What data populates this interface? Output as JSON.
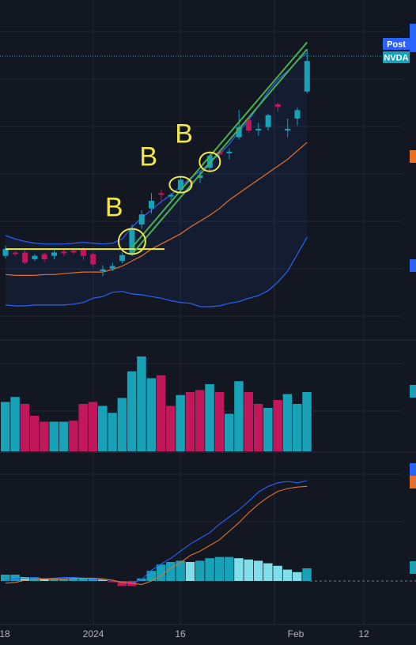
{
  "colors": {
    "background": "#131722",
    "grid": "#232733",
    "up": "#17a2b8",
    "down": "#c2185b",
    "band": "#2962ff",
    "ema": "#e8712a",
    "macd": "#2962ff",
    "signal": "#e8712a",
    "trendline": "#4caf50",
    "annotation": "#f2e64a",
    "hist_pos_strong": "#17a2b8",
    "hist_pos_weak": "#80deea",
    "hist_neg_strong": "#c2185b",
    "hist_neg_weak": "#f48fb1"
  },
  "price_badges": [
    {
      "text": "Post",
      "color": "#2962ff"
    },
    {
      "text": "NVDA",
      "color": "#17a2b8"
    }
  ],
  "annotations": [
    "B",
    "B",
    "B"
  ],
  "chart_data": {
    "type": "candlestick",
    "x_axis": {
      "tick_labels": [
        "18",
        "2024",
        "16",
        "Feb",
        "12"
      ]
    },
    "grid": true,
    "price": {
      "candles": [
        {
          "dir": "up",
          "open": 18,
          "close": 26,
          "high": 30,
          "low": 15
        },
        {
          "dir": "down",
          "open": 22,
          "close": 21,
          "high": 24,
          "low": 18
        },
        {
          "dir": "down",
          "open": 22,
          "close": 10,
          "high": 25,
          "low": 8
        },
        {
          "dir": "up",
          "open": 14,
          "close": 18,
          "high": 20,
          "low": 12
        },
        {
          "dir": "down",
          "open": 20,
          "close": 14,
          "high": 22,
          "low": 11
        },
        {
          "dir": "up",
          "open": 18,
          "close": 22,
          "high": 25,
          "low": 14
        },
        {
          "dir": "down",
          "open": 23,
          "close": 21,
          "high": 26,
          "low": 18
        },
        {
          "dir": "down",
          "open": 24,
          "close": 22,
          "high": 27,
          "low": 20
        },
        {
          "dir": "down",
          "open": 25,
          "close": 18,
          "high": 28,
          "low": 13
        },
        {
          "dir": "down",
          "open": 20,
          "close": 8,
          "high": 22,
          "low": 5
        },
        {
          "dir": "up",
          "open": 0,
          "close": 2,
          "high": 7,
          "low": -6
        },
        {
          "dir": "up",
          "open": 3,
          "close": 6,
          "high": 10,
          "low": 0
        },
        {
          "dir": "up",
          "open": 12,
          "close": 19,
          "high": 22,
          "low": 9
        },
        {
          "dir": "up",
          "open": 20,
          "close": 50,
          "high": 55,
          "low": 18
        },
        {
          "dir": "up",
          "open": 55,
          "close": 67,
          "high": 72,
          "low": 50
        },
        {
          "dir": "up",
          "open": 74,
          "close": 83,
          "high": 92,
          "low": 68
        },
        {
          "dir": "down",
          "open": 92,
          "close": 90,
          "high": 96,
          "low": 80
        },
        {
          "dir": "up",
          "open": 88,
          "close": 90,
          "high": 92,
          "low": 84
        },
        {
          "dir": "up",
          "open": 96,
          "close": 108,
          "high": 112,
          "low": 92
        },
        {
          "dir": "down",
          "open": 107,
          "close": 105,
          "high": 110,
          "low": 98
        },
        {
          "dir": "up",
          "open": 110,
          "close": 113,
          "high": 118,
          "low": 104
        },
        {
          "dir": "up",
          "open": 122,
          "close": 136,
          "high": 140,
          "low": 118
        },
        {
          "dir": "down",
          "open": 141,
          "close": 138,
          "high": 143,
          "low": 134
        },
        {
          "dir": "up",
          "open": 140,
          "close": 141,
          "high": 145,
          "low": 132
        },
        {
          "dir": "up",
          "open": 158,
          "close": 170,
          "high": 190,
          "low": 155
        },
        {
          "dir": "down",
          "open": 178,
          "close": 166,
          "high": 182,
          "low": 164
        },
        {
          "dir": "up",
          "open": 166,
          "close": 168,
          "high": 175,
          "low": 160
        },
        {
          "dir": "up",
          "open": 170,
          "close": 184,
          "high": 186,
          "low": 166
        },
        {
          "dir": "down",
          "open": 197,
          "close": 194,
          "high": 199,
          "low": 188
        },
        {
          "dir": "up",
          "open": 166,
          "close": 168,
          "high": 180,
          "low": 158
        },
        {
          "dir": "up",
          "open": 180,
          "close": 190,
          "high": 193,
          "low": 172
        },
        {
          "dir": "up",
          "open": 212,
          "close": 248,
          "high": 262,
          "low": 210
        }
      ],
      "upper_band": [
        42,
        38,
        35,
        33,
        32,
        32,
        32,
        33,
        34,
        33,
        32,
        33,
        38,
        52,
        63,
        72,
        82,
        90,
        100,
        110,
        118,
        128,
        138,
        150,
        165,
        178,
        195,
        212,
        226,
        236,
        248,
        258
      ],
      "lower_band": [
        -40,
        -41,
        -41,
        -40,
        -40,
        -40,
        -40,
        -39,
        -37,
        -32,
        -30,
        -25,
        -24,
        -27,
        -28,
        -30,
        -32,
        -35,
        -37,
        -38,
        -42,
        -42,
        -41,
        -38,
        -36,
        -32,
        -29,
        -23,
        -13,
        0,
        20,
        40
      ],
      "basis": [
        2,
        0,
        -1,
        -2,
        -2,
        -2,
        -1,
        0,
        1,
        1,
        0,
        1,
        5,
        12,
        22,
        31,
        40,
        48,
        58,
        70,
        80,
        92,
        104,
        118,
        132,
        145,
        162,
        178,
        195,
        207,
        220,
        235
      ],
      "ema": [
        -4,
        -5,
        -5,
        -5,
        -4,
        -4,
        -3,
        -2,
        -1,
        -1,
        -1,
        2,
        6,
        12,
        18,
        26,
        32,
        38,
        44,
        52,
        59,
        66,
        74,
        84,
        92,
        100,
        108,
        116,
        124,
        132,
        142,
        152
      ],
      "horizontal_level": 26,
      "trendlines": [
        {
          "from": [
            13,
            20
          ],
          "to": [
            31,
            262
          ]
        },
        {
          "from": [
            13,
            28
          ],
          "to": [
            31,
            270
          ]
        }
      ],
      "circled": [
        13,
        18,
        21
      ]
    },
    "volume": {
      "values": [
        50,
        55,
        48,
        36,
        30,
        30,
        30,
        31,
        48,
        50,
        46,
        39,
        54,
        81,
        96,
        74,
        77,
        46,
        57,
        60,
        62,
        68,
        60,
        38,
        71,
        60,
        48,
        44,
        52,
        58,
        48,
        60
      ],
      "dirs": [
        "up",
        "up",
        "down",
        "down",
        "down",
        "up",
        "up",
        "down",
        "down",
        "down",
        "up",
        "up",
        "up",
        "up",
        "up",
        "up",
        "down",
        "down",
        "up",
        "down",
        "down",
        "up",
        "down",
        "up",
        "up",
        "down",
        "down",
        "up",
        "down",
        "up",
        "up",
        "up"
      ]
    },
    "macd": {
      "macd": [
        1,
        3,
        4,
        5,
        3,
        4,
        5,
        5,
        4,
        3,
        2,
        1,
        -2,
        -3,
        2,
        15,
        24,
        32,
        42,
        52,
        60,
        68,
        80,
        90,
        100,
        112,
        125,
        133,
        138,
        140,
        138,
        141
      ],
      "signal": [
        -3,
        -2,
        1,
        2,
        3,
        3,
        3,
        4,
        4,
        4,
        3,
        1,
        -2,
        -3,
        -5,
        0,
        8,
        18,
        26,
        36,
        42,
        50,
        58,
        70,
        82,
        96,
        108,
        118,
        126,
        130,
        132,
        133
      ],
      "histogram": [
        5,
        5,
        3,
        3,
        2,
        2,
        2,
        2,
        2,
        2,
        1,
        -1,
        -4,
        -4,
        2,
        8,
        13,
        15,
        16,
        15,
        16,
        18,
        19,
        19,
        18,
        17,
        16,
        14,
        12,
        9,
        7,
        10
      ]
    }
  }
}
